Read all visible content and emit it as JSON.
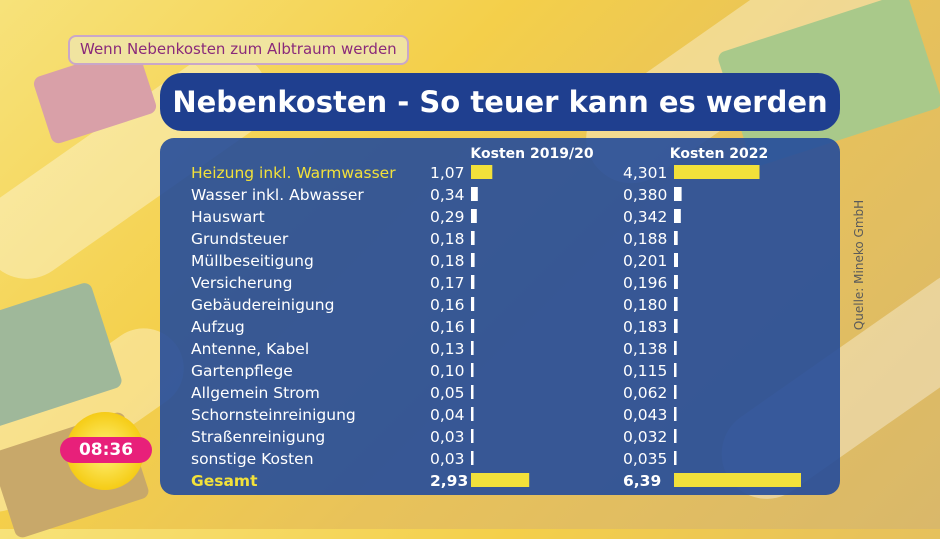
{
  "tag_text": "Wenn Nebenkosten zum Albtraum werden",
  "time": "08:36",
  "source": "Quelle: Mineko GmbH",
  "chart_data": {
    "type": "bar",
    "title": "Nebenkosten - So teuer kann es werden",
    "categories": [
      "Heizung inkl. Warmwasser",
      "Wasser inkl. Abwasser",
      "Hauswart",
      "Grundsteuer",
      "Müllbeseitigung",
      "Versicherung",
      "Gebäudereinigung",
      "Aufzug",
      "Antenne, Kabel",
      "Gartenpflege",
      "Allgemein Strom",
      "Schornsteinreinigung",
      "Straßenreinigung",
      "sonstige Kosten"
    ],
    "series": [
      {
        "name": "Kosten 2019/20",
        "labels": [
          "1,07",
          "0,34",
          "0,29",
          "0,18",
          "0,18",
          "0,17",
          "0,16",
          "0,16",
          "0,13",
          "0,10",
          "0,05",
          "0,04",
          "0,03",
          "0,03"
        ],
        "values": [
          1.07,
          0.34,
          0.29,
          0.18,
          0.18,
          0.17,
          0.16,
          0.16,
          0.13,
          0.1,
          0.05,
          0.04,
          0.03,
          0.03
        ]
      },
      {
        "name": "Kosten 2022",
        "labels": [
          "4,301",
          "0,380",
          "0,342",
          "0,188",
          "0,201",
          "0,196",
          "0,180",
          "0,183",
          "0,138",
          "0,115",
          "0,062",
          "0,043",
          "0,032",
          "0,035"
        ],
        "values": [
          4.301,
          0.38,
          0.342,
          0.188,
          0.201,
          0.196,
          0.18,
          0.183,
          0.138,
          0.115,
          0.062,
          0.043,
          0.032,
          0.035
        ]
      }
    ],
    "totals": {
      "label": "Gesamt",
      "labels": [
        "2,93",
        "6,39"
      ],
      "values": [
        2.93,
        6.39
      ]
    },
    "highlight_color": "#f2e13a",
    "bar_color": "#ffffff",
    "text_color": "#ffffff"
  }
}
